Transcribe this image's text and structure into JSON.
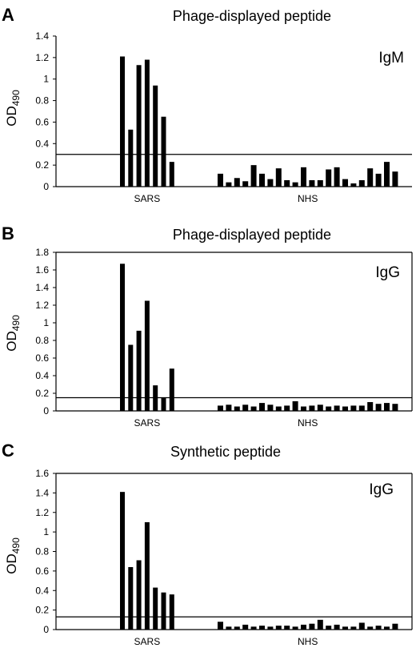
{
  "figure": {
    "panels": [
      {
        "letter": "A",
        "title": "Phage-displayed peptide",
        "isotype": "IgM"
      },
      {
        "letter": "B",
        "title": "Phage-displayed peptide",
        "isotype": "IgG"
      },
      {
        "letter": "C",
        "title": "Synthetic peptide",
        "isotype": "IgG"
      }
    ],
    "ylabel_main": "OD",
    "ylabel_sub": "490"
  },
  "chart_data": [
    {
      "type": "bar",
      "title": "Phage-displayed peptide",
      "annotation": "IgM",
      "ylabel": "OD490",
      "ylim": [
        0,
        1.4
      ],
      "yticks": [
        "0",
        "0.2",
        "0.4",
        "0.6",
        "0.8",
        "1",
        "1.2",
        "1.4"
      ],
      "groups": [
        "SARS",
        "NHS"
      ],
      "cutoff": 0.3,
      "series": [
        {
          "name": "SARS",
          "values": [
            1.21,
            0.53,
            1.13,
            1.18,
            0.94,
            0.65,
            0.23
          ]
        },
        {
          "name": "NHS",
          "values": [
            0.12,
            0.04,
            0.08,
            0.05,
            0.2,
            0.12,
            0.07,
            0.17,
            0.06,
            0.04,
            0.18,
            0.06,
            0.06,
            0.16,
            0.18,
            0.07,
            0.03,
            0.06,
            0.17,
            0.12,
            0.23,
            0.14
          ]
        }
      ],
      "grid": false
    },
    {
      "type": "bar",
      "title": "Phage-displayed peptide",
      "annotation": "IgG",
      "ylabel": "OD490",
      "ylim": [
        0,
        1.8
      ],
      "yticks": [
        "0",
        "0.2",
        "0.4",
        "0.6",
        "0.8",
        "1",
        "1.2",
        "1.4",
        "1.6",
        "1.8"
      ],
      "groups": [
        "SARS",
        "NHS"
      ],
      "cutoff": 0.15,
      "series": [
        {
          "name": "SARS",
          "values": [
            1.67,
            0.75,
            0.91,
            1.25,
            0.29,
            0.15,
            0.48
          ]
        },
        {
          "name": "NHS",
          "values": [
            0.06,
            0.07,
            0.05,
            0.07,
            0.05,
            0.09,
            0.07,
            0.05,
            0.06,
            0.11,
            0.05,
            0.06,
            0.07,
            0.05,
            0.06,
            0.05,
            0.06,
            0.06,
            0.1,
            0.08,
            0.09,
            0.08
          ]
        }
      ],
      "grid": false
    },
    {
      "type": "bar",
      "title": "Synthetic peptide",
      "annotation": "IgG",
      "ylabel": "OD490",
      "ylim": [
        0,
        1.6
      ],
      "yticks": [
        "0",
        "0.2",
        "0.4",
        "0.6",
        "0.8",
        "1",
        "1.2",
        "1.4",
        "1.6"
      ],
      "groups": [
        "SARS",
        "NHS"
      ],
      "cutoff": 0.13,
      "series": [
        {
          "name": "SARS",
          "values": [
            1.41,
            0.64,
            0.71,
            1.1,
            0.43,
            0.38,
            0.36
          ]
        },
        {
          "name": "NHS",
          "values": [
            0.08,
            0.03,
            0.03,
            0.05,
            0.03,
            0.04,
            0.03,
            0.04,
            0.04,
            0.03,
            0.05,
            0.06,
            0.1,
            0.04,
            0.05,
            0.03,
            0.03,
            0.07,
            0.03,
            0.04,
            0.03,
            0.06
          ]
        }
      ],
      "grid": false
    }
  ]
}
